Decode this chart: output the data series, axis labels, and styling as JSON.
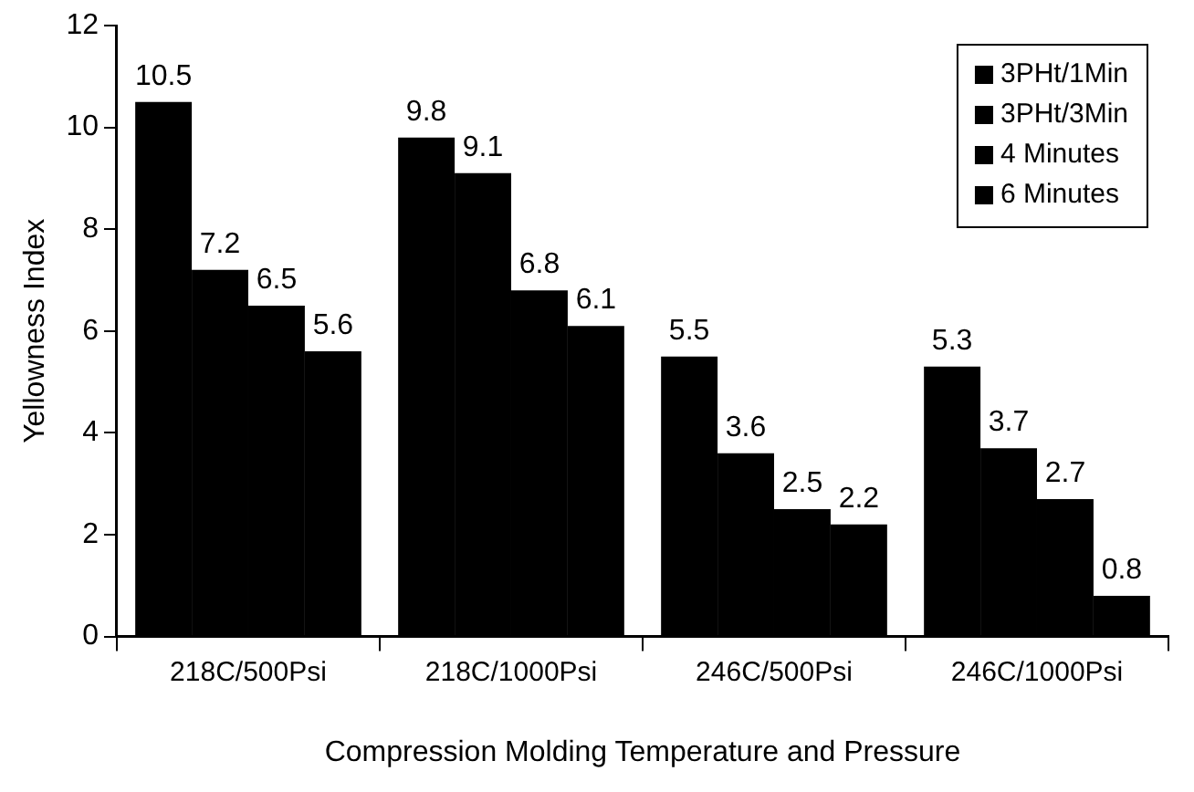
{
  "chart_data": {
    "type": "bar",
    "xlabel": "Compression Molding Temperature and Pressure",
    "ylabel": "Yellowness Index",
    "categories": [
      "218C/500Psi",
      "218C/1000Psi",
      "246C/500Psi",
      "246C/1000Psi"
    ],
    "series": [
      {
        "name": "3PHt/1Min",
        "color": "#000000",
        "values": [
          10.5,
          9.8,
          5.5,
          5.3
        ]
      },
      {
        "name": "3PHt/3Min",
        "color": "#000000",
        "values": [
          7.2,
          9.1,
          3.6,
          3.7
        ]
      },
      {
        "name": "4 Minutes",
        "color": "#000000",
        "values": [
          6.5,
          6.8,
          2.5,
          2.7
        ]
      },
      {
        "name": "6 Minutes",
        "color": "#000000",
        "values": [
          5.6,
          6.1,
          2.2,
          0.8
        ]
      }
    ],
    "ylim": [
      0,
      12
    ],
    "yticks": [
      0,
      2,
      4,
      6,
      8,
      10,
      12
    ],
    "grid": false,
    "legend": "top right",
    "data_labels": true
  }
}
